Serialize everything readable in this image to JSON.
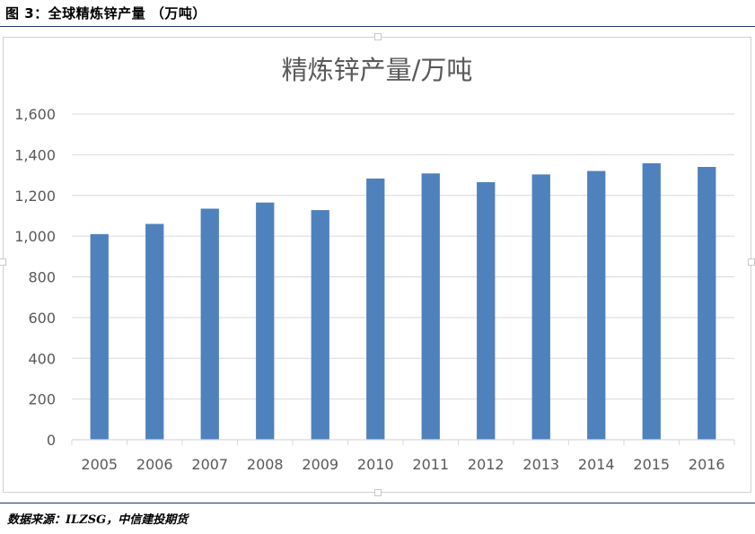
{
  "figure_caption": "图 3：全球精炼锌产量 （万吨）",
  "source_note": "数据来源：ILZSG，中信建投期货",
  "colors": {
    "bar": "#4f81bd",
    "grid": "#d9d9d9",
    "axis_text": "#595959",
    "title_text": "#595959",
    "rule": "#1f3864"
  },
  "chart_data": {
    "type": "bar",
    "title": "精炼锌产量/万吨",
    "xlabel": "",
    "ylabel": "",
    "categories": [
      "2005",
      "2006",
      "2007",
      "2008",
      "2009",
      "2010",
      "2011",
      "2012",
      "2013",
      "2014",
      "2015",
      "2016"
    ],
    "values": [
      1010,
      1060,
      1135,
      1165,
      1128,
      1283,
      1308,
      1265,
      1303,
      1320,
      1358,
      1340
    ],
    "ylim": [
      0,
      1600
    ],
    "yticks": [
      0,
      200,
      400,
      600,
      800,
      1000,
      1200,
      1400,
      1600
    ],
    "ytick_labels": [
      "0",
      "200",
      "400",
      "600",
      "800",
      "1,000",
      "1,200",
      "1,400",
      "1,600"
    ],
    "grid": true,
    "legend": "none"
  }
}
